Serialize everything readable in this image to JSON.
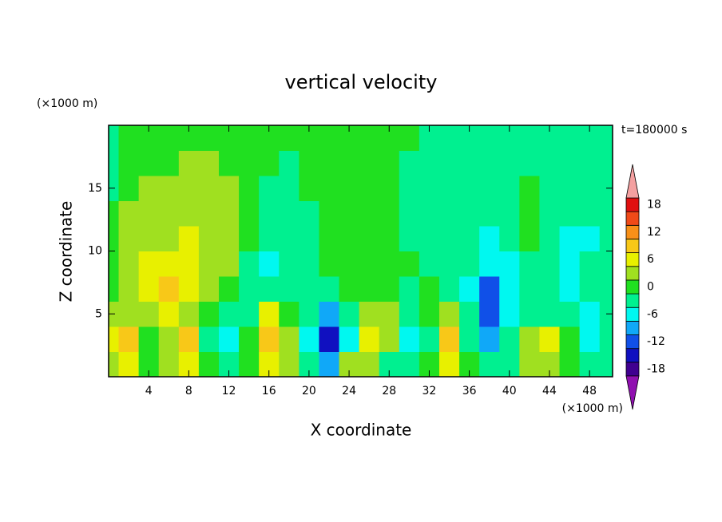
{
  "chart_data": {
    "type": "contour",
    "title": "vertical velocity",
    "xlabel": "X coordinate",
    "ylabel": "Z coordinate",
    "xunit": "(×1000 m)",
    "yunit": "(×1000 m)",
    "annotation": "t=180000 s",
    "xlim": [
      0,
      50.3
    ],
    "ylim": [
      0,
      20
    ],
    "xticks": [
      4,
      8,
      12,
      16,
      20,
      24,
      28,
      32,
      36,
      40,
      44,
      48
    ],
    "yticks": [
      5,
      10,
      15
    ],
    "x": [
      0,
      2,
      4,
      6,
      8,
      10,
      12,
      14,
      16,
      18,
      20,
      22,
      24,
      26,
      28,
      30,
      32,
      34,
      36,
      38,
      40,
      42,
      44,
      46,
      48,
      50
    ],
    "z": [
      1,
      3,
      5,
      7,
      9,
      11,
      13,
      15,
      17,
      19
    ],
    "values": [
      [
        3,
        6,
        0,
        3,
        6,
        0,
        -3,
        0,
        6,
        3,
        -3,
        -9,
        3,
        3,
        -3,
        -3,
        0,
        6,
        0,
        -3,
        -3,
        3,
        3,
        0,
        -3,
        -3
      ],
      [
        6,
        9,
        0,
        3,
        9,
        -3,
        -6,
        0,
        9,
        3,
        -6,
        -15,
        -6,
        6,
        3,
        -6,
        -3,
        9,
        -3,
        -9,
        -3,
        3,
        6,
        0,
        -6,
        -3
      ],
      [
        3,
        3,
        3,
        6,
        3,
        0,
        -3,
        -3,
        6,
        0,
        -3,
        -9,
        -3,
        3,
        3,
        -3,
        0,
        3,
        -3,
        -12,
        -6,
        -3,
        -3,
        -3,
        -6,
        -3
      ],
      [
        0,
        3,
        6,
        9,
        6,
        3,
        0,
        -3,
        -3,
        -3,
        -3,
        -3,
        0,
        0,
        0,
        -3,
        0,
        -3,
        -6,
        -12,
        -6,
        -3,
        -3,
        -6,
        -3,
        -3
      ],
      [
        0,
        3,
        6,
        6,
        6,
        3,
        3,
        -3,
        -6,
        -3,
        -3,
        0,
        0,
        0,
        0,
        0,
        -3,
        -3,
        -3,
        -6,
        -6,
        -3,
        -3,
        -6,
        -3,
        -3
      ],
      [
        0,
        3,
        3,
        3,
        6,
        3,
        3,
        0,
        -3,
        -3,
        -3,
        0,
        0,
        0,
        0,
        -3,
        -3,
        -3,
        -3,
        -6,
        -3,
        0,
        -3,
        -6,
        -6,
        -3
      ],
      [
        0,
        3,
        3,
        3,
        3,
        3,
        3,
        0,
        -3,
        -3,
        -3,
        0,
        0,
        0,
        0,
        -3,
        -3,
        -3,
        -3,
        -3,
        -3,
        0,
        -3,
        -3,
        -3,
        -3
      ],
      [
        -3,
        0,
        3,
        3,
        3,
        3,
        3,
        0,
        -3,
        -3,
        0,
        0,
        0,
        0,
        0,
        -3,
        -3,
        -3,
        -3,
        -3,
        -3,
        0,
        -3,
        -3,
        -3,
        -3
      ],
      [
        -3,
        0,
        0,
        0,
        3,
        3,
        0,
        0,
        0,
        -3,
        0,
        0,
        0,
        0,
        0,
        -3,
        -3,
        -3,
        -3,
        -3,
        -3,
        -3,
        -3,
        -3,
        -3,
        -3
      ],
      [
        -3,
        0,
        0,
        0,
        0,
        0,
        0,
        0,
        0,
        0,
        0,
        0,
        0,
        0,
        0,
        0,
        -3,
        -3,
        -3,
        -3,
        -3,
        -3,
        -3,
        -3,
        -3,
        -3
      ]
    ],
    "colorbar": {
      "levels": [
        -19.5,
        -16.5,
        -13.5,
        -10.5,
        -7.5,
        -4.5,
        -1.5,
        1.5,
        4.5,
        7.5,
        10.5,
        13.5,
        16.5,
        19.5
      ],
      "colors": [
        "#9010b0",
        "#400090",
        "#1010c0",
        "#1050e8",
        "#10a8f8",
        "#00f8f0",
        "#00f090",
        "#20e020",
        "#a0e020",
        "#e8f000",
        "#f8c818",
        "#f89018",
        "#f04a18",
        "#e01010",
        "#f4a0a0"
      ],
      "ticks": [
        18,
        12,
        6,
        0,
        -6,
        -12,
        -18
      ]
    }
  }
}
